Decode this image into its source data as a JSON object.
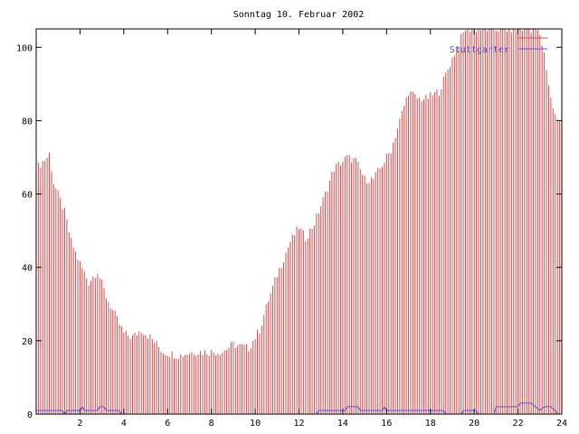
{
  "chart_data": {
    "type": "bar",
    "title": "Sonntag 10. Februar 2002",
    "xlabel": "",
    "ylabel": "",
    "xlim": [
      0,
      24
    ],
    "ylim": [
      0,
      105
    ],
    "grid": false,
    "legend_position": "top-right",
    "x_ticks": [
      2,
      4,
      6,
      8,
      10,
      12,
      14,
      16,
      18,
      20,
      22,
      24
    ],
    "y_ticks": [
      0,
      20,
      40,
      60,
      80,
      100
    ],
    "series": [
      {
        "name": "",
        "style": "impulses",
        "color": "#e04848",
        "step": 0.1,
        "keypoints": [
          [
            0,
            67
          ],
          [
            0.5,
            70
          ],
          [
            0.6,
            71
          ],
          [
            0.8,
            63
          ],
          [
            1.3,
            55
          ],
          [
            1.6,
            47
          ],
          [
            2.0,
            41
          ],
          [
            2.4,
            36
          ],
          [
            2.8,
            39
          ],
          [
            3.2,
            32
          ],
          [
            3.6,
            27
          ],
          [
            4.0,
            22
          ],
          [
            4.4,
            21
          ],
          [
            4.8,
            23
          ],
          [
            5.2,
            21
          ],
          [
            5.8,
            17
          ],
          [
            6.5,
            16
          ],
          [
            7.2,
            17
          ],
          [
            8.0,
            17
          ],
          [
            8.5,
            17
          ],
          [
            9.0,
            19
          ],
          [
            9.7,
            18
          ],
          [
            10.2,
            23
          ],
          [
            10.6,
            31
          ],
          [
            11.0,
            38
          ],
          [
            11.6,
            47
          ],
          [
            12.0,
            51
          ],
          [
            12.3,
            48
          ],
          [
            12.7,
            52
          ],
          [
            13.2,
            60
          ],
          [
            13.6,
            67
          ],
          [
            14.2,
            70
          ],
          [
            14.6,
            69
          ],
          [
            15.0,
            64
          ],
          [
            15.4,
            64
          ],
          [
            15.8,
            68
          ],
          [
            16.2,
            72
          ],
          [
            16.6,
            80
          ],
          [
            17.0,
            88
          ],
          [
            17.4,
            86
          ],
          [
            17.8,
            86
          ],
          [
            18.4,
            88
          ],
          [
            18.8,
            94
          ],
          [
            19.2,
            100
          ],
          [
            19.6,
            105
          ],
          [
            20.0,
            105
          ],
          [
            21.0,
            105
          ],
          [
            21.5,
            105
          ],
          [
            22.3,
            105
          ],
          [
            22.9,
            105
          ],
          [
            23.2,
            98
          ],
          [
            23.5,
            86
          ],
          [
            23.8,
            80
          ],
          [
            24.0,
            80
          ]
        ]
      },
      {
        "name": "Stuttgarter",
        "style": "lines",
        "color": "#5050e0",
        "points": [
          [
            0,
            1
          ],
          [
            1.2,
            1
          ],
          [
            1.3,
            0
          ],
          [
            1.4,
            1
          ],
          [
            2.0,
            1
          ],
          [
            2.1,
            2
          ],
          [
            2.2,
            1
          ],
          [
            2.8,
            1
          ],
          [
            2.9,
            2
          ],
          [
            3.1,
            2
          ],
          [
            3.2,
            1
          ],
          [
            3.8,
            1
          ],
          [
            3.9,
            0
          ],
          [
            12.8,
            0
          ],
          [
            12.9,
            1
          ],
          [
            14.1,
            1
          ],
          [
            14.2,
            2
          ],
          [
            14.7,
            2
          ],
          [
            14.8,
            1
          ],
          [
            15.8,
            1
          ],
          [
            15.9,
            2
          ],
          [
            16.0,
            1
          ],
          [
            18.6,
            1
          ],
          [
            18.7,
            0
          ],
          [
            19.4,
            0
          ],
          [
            19.5,
            1
          ],
          [
            20.1,
            1
          ],
          [
            20.2,
            0
          ],
          [
            20.9,
            0
          ],
          [
            21.0,
            2
          ],
          [
            22.0,
            2
          ],
          [
            22.1,
            3
          ],
          [
            22.6,
            3
          ],
          [
            22.8,
            2
          ],
          [
            23.0,
            1
          ],
          [
            23.2,
            2
          ],
          [
            23.5,
            2
          ],
          [
            23.7,
            1
          ],
          [
            23.8,
            0
          ],
          [
            24.0,
            0
          ]
        ]
      }
    ],
    "legend": [
      {
        "label": "",
        "color": "#e04848"
      },
      {
        "label": "Stuttgarter",
        "color": "#5050e0"
      }
    ]
  }
}
